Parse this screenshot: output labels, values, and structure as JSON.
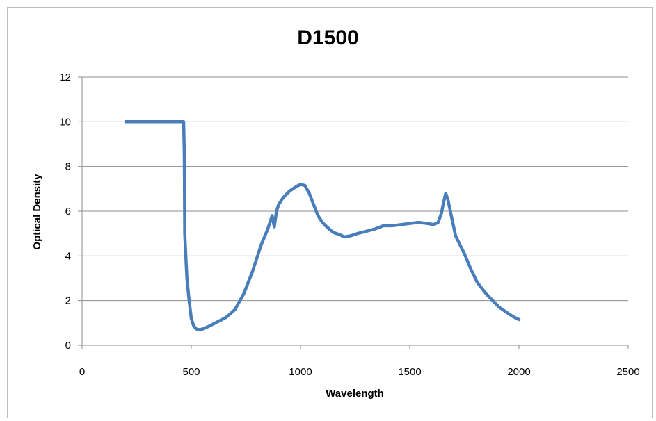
{
  "chart_data": {
    "type": "line",
    "title": "D1500",
    "xlabel": "Wavelength",
    "ylabel": "Optical Density",
    "xlim": [
      0,
      2500
    ],
    "ylim": [
      0,
      12
    ],
    "x_ticks": [
      "0",
      "500",
      "1000",
      "1500",
      "2000",
      "2500"
    ],
    "y_ticks": [
      "0",
      "2",
      "4",
      "6",
      "8",
      "10",
      "12"
    ],
    "grid": "horizontal",
    "legend": "none",
    "line_color": "#4a7ebb",
    "series": [
      {
        "x": [
          200,
          300,
          400,
          465,
          468,
          470,
          475,
          480,
          490,
          500,
          510,
          520,
          530,
          550,
          580,
          620,
          660,
          700,
          740,
          780,
          820,
          850,
          870,
          880,
          890,
          900,
          920,
          950,
          980,
          1000,
          1020,
          1040,
          1060,
          1080,
          1100,
          1120,
          1150,
          1180,
          1200,
          1230,
          1260,
          1300,
          1340,
          1380,
          1420,
          1460,
          1500,
          1540,
          1580,
          1610,
          1630,
          1645,
          1655,
          1665,
          1675,
          1690,
          1710,
          1730,
          1750,
          1780,
          1810,
          1850,
          1880,
          1910,
          1940,
          1970,
          2000
        ],
        "y": [
          10,
          10,
          10,
          10,
          8.5,
          5.0,
          4.0,
          3.0,
          2.0,
          1.2,
          0.9,
          0.75,
          0.7,
          0.72,
          0.85,
          1.05,
          1.25,
          1.6,
          2.3,
          3.3,
          4.5,
          5.2,
          5.8,
          5.3,
          6.0,
          6.3,
          6.6,
          6.9,
          7.1,
          7.2,
          7.15,
          6.8,
          6.3,
          5.8,
          5.5,
          5.3,
          5.05,
          4.95,
          4.85,
          4.9,
          5.0,
          5.1,
          5.2,
          5.35,
          5.35,
          5.4,
          5.45,
          5.5,
          5.45,
          5.4,
          5.5,
          5.9,
          6.4,
          6.8,
          6.5,
          5.8,
          4.9,
          4.5,
          4.1,
          3.4,
          2.8,
          2.3,
          2.0,
          1.7,
          1.5,
          1.3,
          1.15
        ]
      }
    ]
  }
}
